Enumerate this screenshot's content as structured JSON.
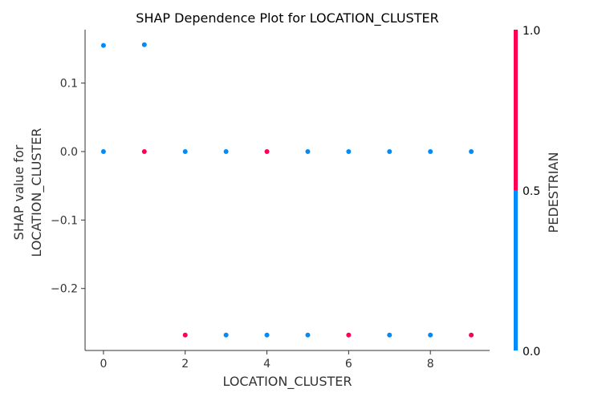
{
  "chart_data": {
    "type": "scatter",
    "title": "SHAP Dependence Plot for LOCATION_CLUSTER",
    "xlabel": "LOCATION_CLUSTER",
    "ylabel_lines": [
      "SHAP value for",
      "LOCATION_CLUSTER"
    ],
    "xlim": [
      -0.45,
      9.45
    ],
    "ylim": [
      -0.2905,
      0.178
    ],
    "x_ticks": [
      0,
      2,
      4,
      6,
      8
    ],
    "y_ticks": [
      -0.2,
      -0.1,
      0.0,
      0.1
    ],
    "y_tick_labels": [
      "−0.2",
      "−0.1",
      "0.0",
      "0.1"
    ],
    "grid": false,
    "colors": {
      "low": "#008bfb",
      "high": "#ff0052",
      "axis": "#333333"
    },
    "colorbar": {
      "label": "PEDESTRIAN",
      "ticks": [
        0.0,
        0.5,
        1.0
      ],
      "tick_labels": [
        "0.0",
        "0.5",
        "1.0"
      ]
    },
    "points": [
      {
        "x": 0,
        "y": 0.155,
        "pedestrian": 0
      },
      {
        "x": 1,
        "y": 0.156,
        "pedestrian": 0
      },
      {
        "x": 0,
        "y": 0.0,
        "pedestrian": 0
      },
      {
        "x": 1,
        "y": 0.0,
        "pedestrian": 1
      },
      {
        "x": 2,
        "y": 0.0,
        "pedestrian": 0
      },
      {
        "x": 3,
        "y": 0.0,
        "pedestrian": 0
      },
      {
        "x": 4,
        "y": 0.0,
        "pedestrian": 1
      },
      {
        "x": 5,
        "y": 0.0,
        "pedestrian": 0
      },
      {
        "x": 6,
        "y": 0.0,
        "pedestrian": 0
      },
      {
        "x": 7,
        "y": 0.0,
        "pedestrian": 0
      },
      {
        "x": 8,
        "y": 0.0,
        "pedestrian": 0
      },
      {
        "x": 9,
        "y": 0.0,
        "pedestrian": 0
      },
      {
        "x": 2,
        "y": -0.268,
        "pedestrian": 1
      },
      {
        "x": 3,
        "y": -0.268,
        "pedestrian": 0
      },
      {
        "x": 4,
        "y": -0.268,
        "pedestrian": 0
      },
      {
        "x": 5,
        "y": -0.268,
        "pedestrian": 0
      },
      {
        "x": 6,
        "y": -0.268,
        "pedestrian": 1
      },
      {
        "x": 7,
        "y": -0.268,
        "pedestrian": 0
      },
      {
        "x": 8,
        "y": -0.268,
        "pedestrian": 0
      },
      {
        "x": 9,
        "y": -0.268,
        "pedestrian": 1
      }
    ]
  }
}
